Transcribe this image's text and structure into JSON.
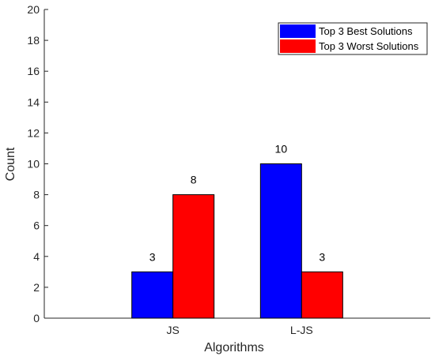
{
  "chart_data": {
    "type": "bar",
    "title": "",
    "xlabel": "Algorithms",
    "ylabel": "Count",
    "categories": [
      "JS",
      "L-JS"
    ],
    "ylim": [
      0,
      20
    ],
    "yticks": [
      0,
      2,
      4,
      6,
      8,
      10,
      12,
      14,
      16,
      18,
      20
    ],
    "grid": false,
    "legend_position": "top-right",
    "series": [
      {
        "name": "Top 3 Best Solutions",
        "color": "#0000ff",
        "values": [
          3,
          10
        ]
      },
      {
        "name": "Top 3 Worst Solutions",
        "color": "#ff0000",
        "values": [
          8,
          3
        ]
      }
    ]
  }
}
